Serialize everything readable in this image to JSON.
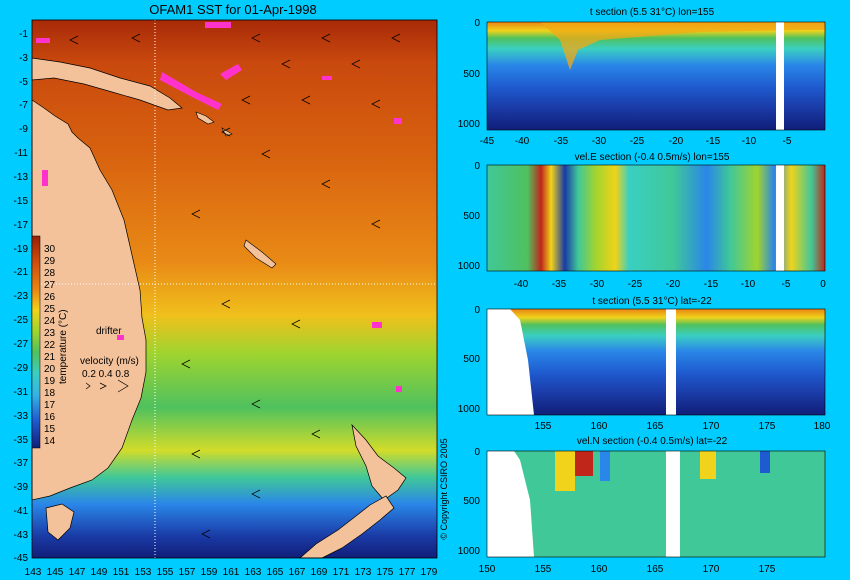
{
  "colors": {
    "background": "#00ccff",
    "land": "#f4c29a",
    "drifter": "#ff33cc",
    "scale": [
      "#101e78",
      "#1a3aa5",
      "#1f5bd0",
      "#2a86e8",
      "#34b3e6",
      "#3acfc2",
      "#40c898",
      "#4fc15e",
      "#72c83c",
      "#9fd42f",
      "#d2dc2a",
      "#f0d31a",
      "#f3a914",
      "#e98414",
      "#dd6812",
      "#cc4c0e",
      "#b3360b",
      "#961f05"
    ]
  },
  "map": {
    "title": "OFAM1 SST for 01-Apr-1998",
    "y_ticks": [
      "-1",
      "-3",
      "-5",
      "-7",
      "-9",
      "-11",
      "-13",
      "-15",
      "-17",
      "-19",
      "-21",
      "-23",
      "-25",
      "-27",
      "-29",
      "-31",
      "-33",
      "-35",
      "-37",
      "-39",
      "-41",
      "-43",
      "-45"
    ],
    "x_ticks": [
      "143",
      "145",
      "147",
      "149",
      "151",
      "153",
      "155",
      "157",
      "159",
      "161",
      "163",
      "165",
      "167",
      "169",
      "171",
      "173",
      "175",
      "177",
      "179"
    ],
    "drifter_label": "drifter",
    "velocity_label": "velocity (m/s)",
    "velocity_values": "0.2 0.4 0.8",
    "colorbar_label": "temperature (°C)",
    "colorbar_ticks": [
      "30",
      "29",
      "28",
      "27",
      "26",
      "25",
      "24",
      "23",
      "22",
      "21",
      "20",
      "19",
      "18",
      "17",
      "16",
      "15",
      "14"
    ],
    "copyright": "© Copyright CSIRO 2005"
  },
  "panels": [
    {
      "title": "t section (5.5      31°C) lon=155",
      "x_ticks": [
        "-45",
        "-40",
        "-35",
        "-30",
        "-25",
        "-20",
        "-15",
        "-10",
        "-5"
      ],
      "y_ticks": [
        "0",
        "500",
        "1000"
      ]
    },
    {
      "title": "vel.E section (-0.4      0.5m/s) lon=155",
      "x_ticks": [
        "-40",
        "-35",
        "-30",
        "-25",
        "-20",
        "-15",
        "-10",
        "-5",
        "0"
      ],
      "y_ticks": [
        "0",
        "500",
        "1000"
      ]
    },
    {
      "title": "t section (5.5      31°C) lat=-22",
      "x_ticks": [
        "155",
        "160",
        "165",
        "170",
        "175",
        "180"
      ],
      "y_ticks": [
        "0",
        "500",
        "1000"
      ]
    },
    {
      "title": "vel.N section (-0.4      0.5m/s) lat=-22",
      "x_ticks": [
        "150",
        "155",
        "160",
        "165",
        "170",
        "175"
      ],
      "y_ticks": [
        "0",
        "500",
        "1000"
      ]
    }
  ],
  "chart_data": [
    {
      "type": "heatmap",
      "title": "OFAM1 SST for 01-Apr-1998",
      "x_ticks": [
        "143",
        "145",
        "147",
        "149",
        "151",
        "153",
        "155",
        "157",
        "159",
        "161",
        "163",
        "165",
        "167",
        "169",
        "171",
        "173",
        "175",
        "177",
        "179"
      ],
      "y_ticks": [
        "-1",
        "-3",
        "-5",
        "-7",
        "-9",
        "-11",
        "-13",
        "-15",
        "-17",
        "-19",
        "-21",
        "-23",
        "-25",
        "-27",
        "-29",
        "-31",
        "-33",
        "-35",
        "-37",
        "-39",
        "-41",
        "-43",
        "-45"
      ],
      "xlim": [
        143,
        180
      ],
      "ylim": [
        -45,
        0
      ],
      "colorbar": {
        "label": "temperature (°C)",
        "range": [
          14,
          30
        ]
      },
      "sst_by_lat": [
        {
          "lat": -1,
          "sst": 29.5
        },
        {
          "lat": -5,
          "sst": 29.5
        },
        {
          "lat": -10,
          "sst": 29
        },
        {
          "lat": -15,
          "sst": 28.5
        },
        {
          "lat": -20,
          "sst": 27.5
        },
        {
          "lat": -23,
          "sst": 26.5
        },
        {
          "lat": -26,
          "sst": 24
        },
        {
          "lat": -29,
          "sst": 22.5
        },
        {
          "lat": -33,
          "sst": 21
        },
        {
          "lat": -37,
          "sst": 19
        },
        {
          "lat": -40,
          "sst": 16.5
        },
        {
          "lat": -44,
          "sst": 14.5
        }
      ]
    },
    {
      "type": "heatmap",
      "title": "t section (5.5      31°C) lon=155",
      "xlim": [
        -45,
        0
      ],
      "ylim": [
        1050,
        0
      ],
      "colorbar_range": [
        5.5,
        31
      ]
    },
    {
      "type": "heatmap",
      "title": "vel.E section (-0.4      0.5m/s) lon=155",
      "xlim": [
        -45,
        0
      ],
      "ylim": [
        1050,
        0
      ],
      "colorbar_range": [
        -0.4,
        0.5
      ]
    },
    {
      "type": "heatmap",
      "title": "t section (5.5      31°C) lat=-22",
      "xlim": [
        150,
        180
      ],
      "ylim": [
        1050,
        0
      ],
      "colorbar_range": [
        5.5,
        31
      ]
    },
    {
      "type": "heatmap",
      "title": "vel.N section (-0.4      0.5m/s) lat=-22",
      "xlim": [
        150,
        180
      ],
      "ylim": [
        1050,
        0
      ],
      "colorbar_range": [
        -0.4,
        0.5
      ]
    }
  ]
}
